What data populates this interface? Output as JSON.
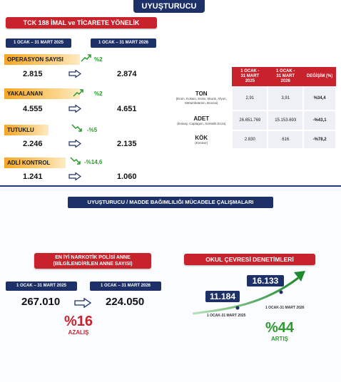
{
  "header": {
    "title": "UYUŞTURUCU"
  },
  "section1": {
    "title": "TCK 188 İMAL ve TİCARETE YÖNELİK",
    "period_a": "1 OCAK – 31 MART 2025",
    "period_b": "1 OCAK – 31 MART 2026",
    "metrics": [
      {
        "label": "OPERASYON SAYISI",
        "trend": "%2",
        "direction": "up",
        "a": "2.815",
        "b": "2.874"
      },
      {
        "label": "YAKALANAN",
        "trend": "%2",
        "direction": "up",
        "a": "4.555",
        "b": "4.651"
      },
      {
        "label": "TUTUKLU",
        "trend": "-%5",
        "direction": "down",
        "a": "2.246",
        "b": "2.135"
      },
      {
        "label": "ADLİ KONTROL",
        "trend": "-%14,6",
        "direction": "down",
        "a": "1.241",
        "b": "1.060"
      }
    ]
  },
  "table": {
    "headers": [
      "",
      "1 OCAK -\n31 MART\n2025",
      "1 OCAK -\n31 MART\n2026",
      "DEĞİŞİM (%)"
    ],
    "rows": [
      {
        "name": "TON",
        "sub": "(Eroin, Kokain, Esrar, Skunk, Afyon, Metamfetamin, Bonzai)",
        "a": "2,91",
        "b": "3,91",
        "change": "%34,4"
      },
      {
        "name": "ADET",
        "sub": "(Extasy, Captagon, Sentetik Ecza)",
        "a": "26.651.769",
        "b": "15.153.693",
        "change": "-%43,1"
      },
      {
        "name": "KÖK",
        "sub": "(Kenevir)",
        "a": "2.830",
        "b": "616",
        "change": "-%78,2"
      }
    ]
  },
  "section2": {
    "title": "UYUŞTURUCU / MADDE BAĞIMLILIĞI MÜCADELE ÇALIŞMALARI"
  },
  "mothers": {
    "title_line1": "EN İYİ NARKOTİK POLİSİ ANNE",
    "title_line2": "(BİLGİLENDİRİLEN ANNE SAYISI)",
    "period_a": "1 OCAK – 31 MART 2025",
    "period_b": "1 OCAK – 31 MART 2026",
    "a": "267.010",
    "b": "224.050",
    "pct": "%16",
    "pct_label": "AZALIŞ",
    "pct_color": "#c8222c"
  },
  "school": {
    "title": "OKUL ÇEVRESİ DENETİMLERİ",
    "a": "11.184",
    "b": "16.133",
    "date_a": "1 OCAK-31 MART 2025",
    "date_b": "1 OCAK-31 MART 2026",
    "pct": "%44",
    "pct_label": "ARTIŞ",
    "pct_color": "#2d9a2d"
  }
}
